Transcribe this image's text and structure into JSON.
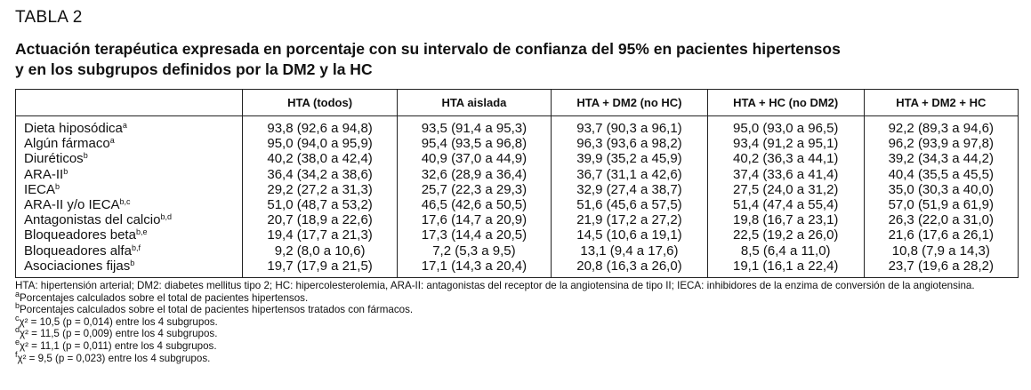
{
  "header": {
    "label": "TABLA 2",
    "title_lines": [
      "Actuación terapéutica expresada en porcentaje con su intervalo de confianza del 95% en pacientes hipertensos",
      "y en los subgrupos definidos por la DM2 y la HC"
    ]
  },
  "table": {
    "columns": [
      "HTA (todos)",
      "HTA aislada",
      "HTA + DM2 (no HC)",
      "HTA + HC (no DM2)",
      "HTA + DM2 + HC"
    ],
    "rows": [
      {
        "label": "Dieta hiposódica",
        "sup": "a",
        "values": [
          "93,8 (92,6 a 94,8)",
          "93,5 (91,4 a 95,3)",
          "93,7 (90,3 a 96,1)",
          "95,0 (93,0 a 96,5)",
          "92,2 (89,3 a 94,6)"
        ]
      },
      {
        "label": "Algún fármaco",
        "sup": "a",
        "values": [
          "95,0 (94,0 a 95,9)",
          "95,4 (93,5 a 96,8)",
          "96,3 (93,6 a 98,2)",
          "93,4 (91,2 a 95,1)",
          "96,2 (93,9 a 97,8)"
        ]
      },
      {
        "label": "Diuréticos",
        "sup": "b",
        "values": [
          "40,2 (38,0 a 42,4)",
          "40,9 (37,0 a 44,9)",
          "39,9 (35,2 a 45,9)",
          "40,2 (36,3 a 44,1)",
          "39,2 (34,3 a 44,2)"
        ]
      },
      {
        "label": "ARA-II",
        "sup": "b",
        "values": [
          "36,4 (34,2 a 38,6)",
          "32,6 (28,9 a 36,4)",
          "36,7 (31,1 a 42,6)",
          "37,4 (33,6 a 41,4)",
          "40,4 (35,5 a 45,5)"
        ]
      },
      {
        "label": "IECA",
        "sup": "b",
        "values": [
          "29,2 (27,2 a 31,3)",
          "25,7 (22,3 a 29,3)",
          "32,9 (27,4 a 38,7)",
          "27,5 (24,0 a 31,2)",
          "35,0 (30,3 a 40,0)"
        ]
      },
      {
        "label": "ARA-II y/o IECA",
        "sup": "b,c",
        "values": [
          "51,0 (48,7 a 53,2)",
          "46,5 (42,6 a 50,5)",
          "51,6 (45,6 a 57,5)",
          "51,4 (47,4 a 55,4)",
          "57,0 (51,9 a 61,9)"
        ]
      },
      {
        "label": "Antagonistas del calcio",
        "sup": "b,d",
        "values": [
          "20,7 (18,9 a 22,6)",
          "17,6 (14,7 a 20,9)",
          "21,9 (17,2 a 27,2)",
          "19,8 (16,7 a 23,1)",
          "26,3 (22,0 a 31,0)"
        ]
      },
      {
        "label": "Bloqueadores beta",
        "sup": "b,e",
        "values": [
          "19,4 (17,7 a 21,3)",
          "17,3 (14,4 a 20,5)",
          "14,5 (10,6 a 19,1)",
          "22,5 (19,2 a 26,0)",
          "21,6 (17,6 a 26,1)"
        ]
      },
      {
        "label": "Bloqueadores alfa",
        "sup": "b,f",
        "values": [
          "9,2 (8,0 a 10,6)",
          "7,2 (5,3 a 9,5)",
          "13,1 (9,4 a 17,6)",
          "8,5 (6,4 a 11,0)",
          "10,8 (7,9 a 14,3)"
        ]
      },
      {
        "label": "Asociaciones fijas",
        "sup": "b",
        "values": [
          "19,7 (17,9 a 21,5)",
          "17,1 (14,3 a 20,4)",
          "20,8 (16,3 a 26,0)",
          "19,1 (16,1 a 22,4)",
          "23,7 (19,6 a 28,2)"
        ]
      }
    ]
  },
  "footnotes": [
    {
      "text": "HTA: hipertensión arterial; DM2: diabetes mellitus tipo 2; HC: hipercolesterolemia, ARA-II: antagonistas del receptor de la angiotensina de tipo II; IECA: inhibidores de la enzima de conversión de la angiotensina."
    },
    {
      "mark": "a",
      "text": "Porcentajes calculados sobre el total de pacientes hipertensos."
    },
    {
      "mark": "b",
      "text": "Porcentajes calculados sobre el total de pacientes hipertensos tratados con fármacos."
    },
    {
      "mark": "c",
      "text": "χ² = 10,5 (p = 0,014) entre los 4 subgrupos."
    },
    {
      "mark": "d",
      "text": "χ² = 11,5 (p = 0,009) entre los 4 subgrupos."
    },
    {
      "mark": "e",
      "text": "χ² = 11,1 (p = 0,011) entre los 4 subgrupos."
    },
    {
      "mark": "f",
      "text": "χ² = 9,5 (p = 0,023) entre los 4 subgrupos."
    }
  ]
}
